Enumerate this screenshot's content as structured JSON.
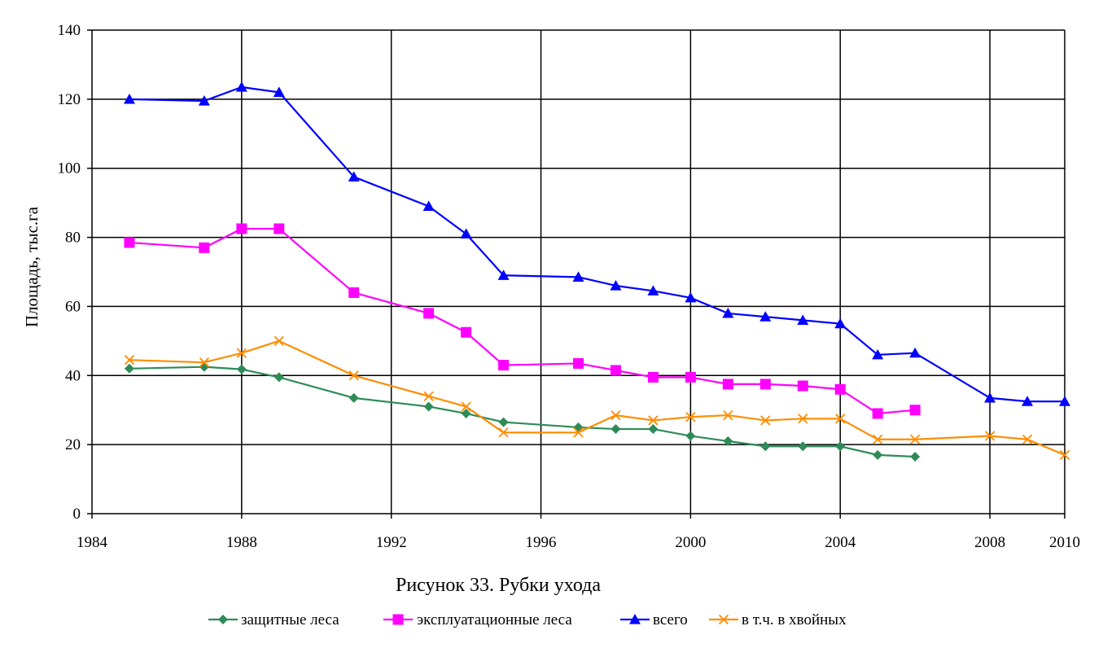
{
  "chart_data": {
    "type": "line",
    "caption": "Рисунок 33. Рубки ухода",
    "ylabel": "Площадь, тыс.га",
    "xlabel": "",
    "xlim": [
      1984,
      2010
    ],
    "ylim": [
      0,
      140
    ],
    "x_ticks": [
      "1984",
      "1988",
      "1992",
      "1996",
      "2000",
      "2004",
      "2008",
      "2010"
    ],
    "y_ticks": [
      "0",
      "20",
      "40",
      "60",
      "80",
      "100",
      "120",
      "140"
    ],
    "grid": true,
    "legend_position": "bottom",
    "series": [
      {
        "name": "защитные леса",
        "color": "#2e8b57",
        "marker": "diamond",
        "points": [
          [
            1985,
            42
          ],
          [
            1987,
            42.5
          ],
          [
            1988,
            41.8
          ],
          [
            1989,
            39.5
          ],
          [
            1991,
            33.5
          ],
          [
            1993,
            31
          ],
          [
            1994,
            29
          ],
          [
            1995,
            26.5
          ],
          [
            1997,
            25
          ],
          [
            1998,
            24.5
          ],
          [
            1999,
            24.5
          ],
          [
            2000,
            22.5
          ],
          [
            2001,
            21
          ],
          [
            2002,
            19.5
          ],
          [
            2003,
            19.5
          ],
          [
            2004,
            19.5
          ],
          [
            2005,
            17
          ],
          [
            2006,
            16.5
          ]
        ]
      },
      {
        "name": "эксплуатационные леса",
        "color": "#ff00ff",
        "marker": "square",
        "points": [
          [
            1985,
            78.5
          ],
          [
            1987,
            77
          ],
          [
            1988,
            82.5
          ],
          [
            1989,
            82.5
          ],
          [
            1991,
            64
          ],
          [
            1993,
            58
          ],
          [
            1994,
            52.5
          ],
          [
            1995,
            43
          ],
          [
            1997,
            43.5
          ],
          [
            1998,
            41.5
          ],
          [
            1999,
            39.5
          ],
          [
            2000,
            39.5
          ],
          [
            2001,
            37.5
          ],
          [
            2002,
            37.5
          ],
          [
            2003,
            37
          ],
          [
            2004,
            36
          ],
          [
            2005,
            29
          ],
          [
            2006,
            30
          ]
        ]
      },
      {
        "name": "всего",
        "color": "#0000ff",
        "marker": "triangle",
        "points": [
          [
            1985,
            120
          ],
          [
            1987,
            119.5
          ],
          [
            1988,
            123.5
          ],
          [
            1989,
            122
          ],
          [
            1991,
            97.5
          ],
          [
            1993,
            89
          ],
          [
            1994,
            81
          ],
          [
            1995,
            69
          ],
          [
            1997,
            68.5
          ],
          [
            1998,
            66
          ],
          [
            1999,
            64.5
          ],
          [
            2000,
            62.5
          ],
          [
            2001,
            58
          ],
          [
            2002,
            57
          ],
          [
            2003,
            56
          ],
          [
            2004,
            55
          ],
          [
            2005,
            46
          ],
          [
            2006,
            46.5
          ],
          [
            2008,
            33.5
          ],
          [
            2009,
            32.5
          ],
          [
            2010,
            32.5
          ]
        ]
      },
      {
        "name": "в т.ч. в хвойных",
        "color": "#ff8c00",
        "marker": "x",
        "points": [
          [
            1985,
            44.5
          ],
          [
            1987,
            43.8
          ],
          [
            1988,
            46.5
          ],
          [
            1989,
            50
          ],
          [
            1991,
            40
          ],
          [
            1993,
            34
          ],
          [
            1994,
            31
          ],
          [
            1995,
            23.5
          ],
          [
            1997,
            23.5
          ],
          [
            1998,
            28.5
          ],
          [
            1999,
            27
          ],
          [
            2000,
            28
          ],
          [
            2001,
            28.5
          ],
          [
            2002,
            27
          ],
          [
            2003,
            27.5
          ],
          [
            2004,
            27.5
          ],
          [
            2005,
            21.5
          ],
          [
            2006,
            21.5
          ],
          [
            2008,
            22.5
          ],
          [
            2009,
            21.5
          ],
          [
            2010,
            17
          ]
        ]
      }
    ]
  }
}
